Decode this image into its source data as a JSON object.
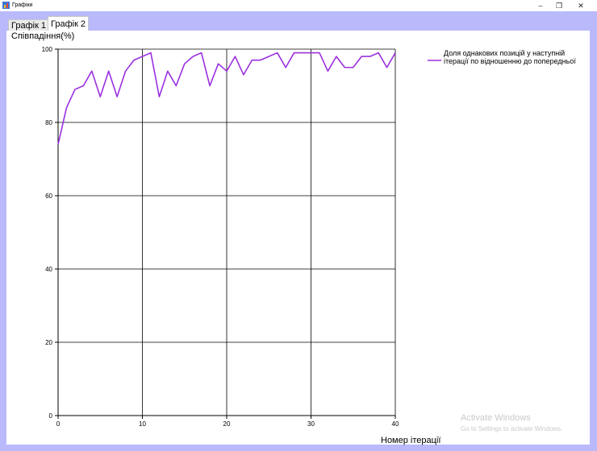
{
  "window": {
    "title": "Графіки",
    "minimize_glyph": "–",
    "maximize_glyph": "❐",
    "close_glyph": "✕"
  },
  "tabs": [
    {
      "label": "Графік 1",
      "active": false
    },
    {
      "label": "Графік 2",
      "active": true
    }
  ],
  "colors": {
    "frame": "#b9b9fb",
    "series": "#9b30e0",
    "grid": "#000000"
  },
  "watermark": {
    "title": "Activate Windows",
    "subtitle": "Go to Settings to activate Windows."
  },
  "chart_data": {
    "type": "line",
    "title": "",
    "ylabel": "Співпадіння(%)",
    "xlabel": "Номер ітерації",
    "xlim": [
      0,
      40
    ],
    "ylim": [
      0,
      100
    ],
    "xticks": [
      0,
      10,
      20,
      30,
      40
    ],
    "yticks": [
      0,
      20,
      40,
      60,
      80,
      100
    ],
    "grid": true,
    "legend": "top-right",
    "series": [
      {
        "name": "Доля однакових позицій у наступній ітерації по відношенню до попередньої",
        "color": "#9b30e0",
        "x": [
          0,
          1,
          2,
          3,
          4,
          5,
          6,
          7,
          8,
          9,
          10,
          11,
          12,
          13,
          14,
          15,
          16,
          17,
          18,
          19,
          20,
          21,
          22,
          23,
          24,
          25,
          26,
          27,
          28,
          29,
          30,
          31,
          32,
          33,
          34,
          35,
          36,
          37,
          38,
          39,
          40
        ],
        "y": [
          74,
          84,
          89,
          90,
          94,
          87,
          94,
          87,
          94,
          97,
          98,
          99,
          87,
          94,
          90,
          96,
          98,
          99,
          90,
          96,
          94,
          98,
          93,
          97,
          97,
          98,
          99,
          95,
          99,
          99,
          99,
          99,
          94,
          98,
          95,
          95,
          98,
          98,
          99,
          95,
          99
        ]
      }
    ]
  }
}
